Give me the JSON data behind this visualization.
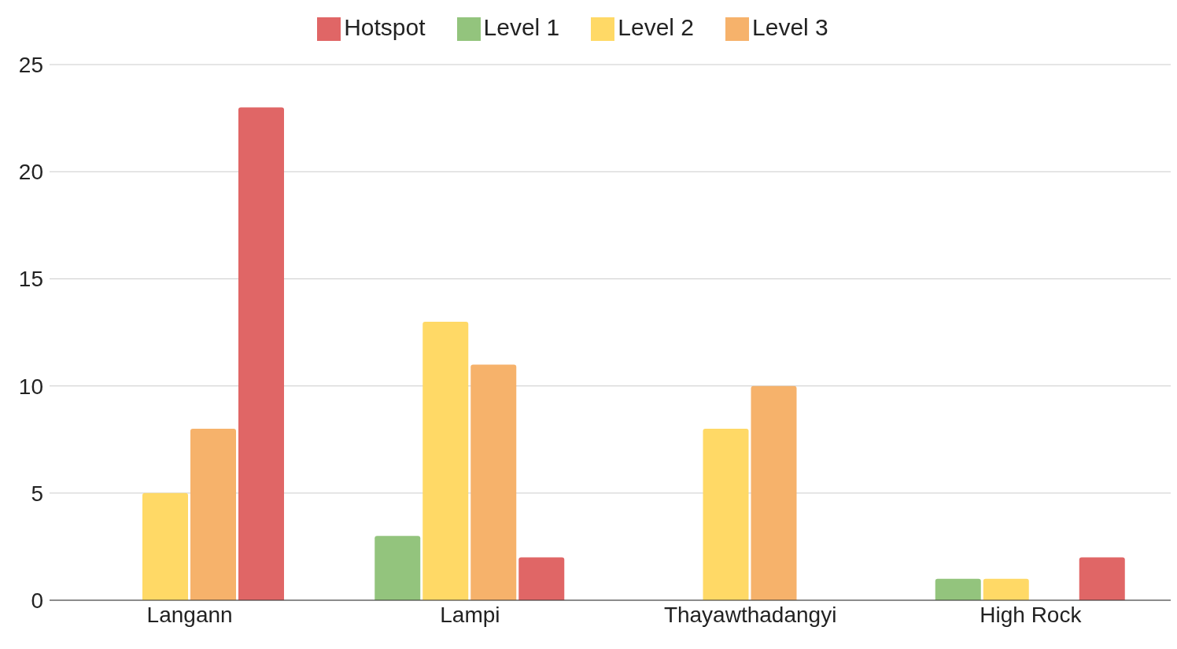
{
  "chart_data": {
    "type": "bar",
    "categories": [
      "Langann",
      "Lampi",
      "Thayawthadangyi",
      "High Rock"
    ],
    "series": [
      {
        "name": "Level 1",
        "color": "#93c47d",
        "values": [
          0,
          3,
          0,
          1
        ]
      },
      {
        "name": "Level 2",
        "color": "#ffd966",
        "values": [
          5,
          13,
          8,
          1
        ]
      },
      {
        "name": "Level 3",
        "color": "#f6b26b",
        "values": [
          8,
          11,
          10,
          0
        ]
      },
      {
        "name": "Hotspot",
        "color": "#e06666",
        "values": [
          23,
          2,
          0,
          2
        ]
      }
    ],
    "ylim": [
      0,
      25
    ],
    "yticks": [
      0,
      5,
      10,
      15,
      20,
      25
    ],
    "grid": "y",
    "legend": "top"
  }
}
